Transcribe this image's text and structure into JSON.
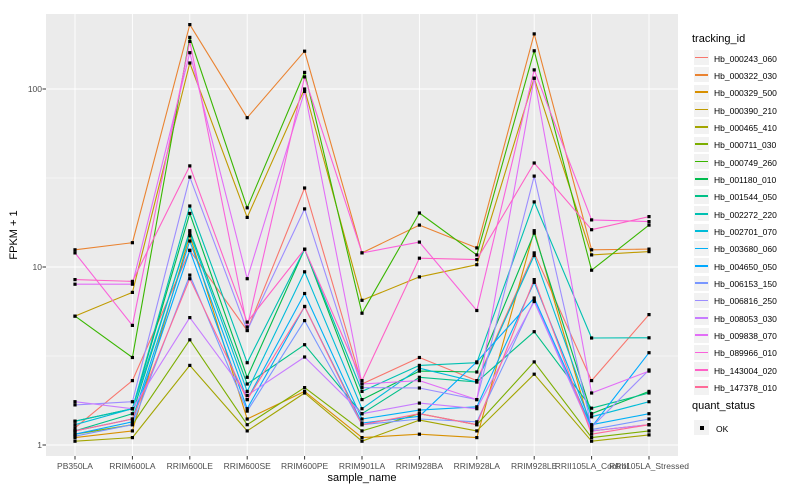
{
  "chart_data": {
    "type": "line",
    "title": "",
    "xlabel": "sample_name",
    "ylabel": "FPKM + 1",
    "yscale": "log10",
    "yticks": [
      1,
      10,
      100
    ],
    "ylim": [
      0.87,
      264
    ],
    "grid": "major+minor white on grey panel",
    "legend_position": "right",
    "panel_bg": "#EBEBEB",
    "grid_color": "#FFFFFF",
    "tick_color": "#333333",
    "point_shape": "square",
    "point_color": "#000000",
    "categories": [
      "PB350LA",
      "RRIM600LA",
      "RRIM600LE",
      "RRIM600SE",
      "RRIM600PE",
      "RRIM901LA",
      "RRIM928BA",
      "RRIM928LA",
      "RRIM928LE",
      "RRII105LA_Control",
      "RRII105LA_Stressed"
    ],
    "series": [
      {
        "name": "Hb_000243_060",
        "color": "#F8766D",
        "values": [
          1.25,
          2.3,
          12.4,
          4.4,
          27.8,
          2.2,
          3.1,
          2.3,
          12.0,
          2.3,
          5.4
        ]
      },
      {
        "name": "Hb_000322_030",
        "color": "#EA8331",
        "values": [
          12.5,
          13.7,
          230,
          69,
          163,
          12.0,
          17.2,
          12.8,
          204,
          12.5,
          12.6
        ]
      },
      {
        "name": "Hb_000329_500",
        "color": "#D89000",
        "values": [
          1.1,
          1.2,
          15.0,
          1.4,
          2.0,
          1.1,
          1.15,
          1.1,
          16.0,
          1.2,
          1.3
        ]
      },
      {
        "name": "Hb_000390_210",
        "color": "#C09B00",
        "values": [
          5.3,
          7.2,
          140,
          19.0,
          100,
          6.5,
          8.8,
          10.3,
          115,
          11.7,
          12.2
        ]
      },
      {
        "name": "Hb_000465_410",
        "color": "#A3A500",
        "values": [
          1.05,
          1.1,
          2.8,
          1.2,
          1.96,
          1.05,
          1.38,
          1.2,
          2.5,
          1.05,
          1.14
        ]
      },
      {
        "name": "Hb_000711_030",
        "color": "#7CAE00",
        "values": [
          1.15,
          1.3,
          3.9,
          1.3,
          2.1,
          1.2,
          1.5,
          1.3,
          2.93,
          1.1,
          1.2
        ]
      },
      {
        "name": "Hb_000749_260",
        "color": "#39B600",
        "values": [
          5.3,
          3.1,
          195,
          21.5,
          124,
          5.5,
          20.1,
          11.7,
          164,
          9.6,
          17.2
        ]
      },
      {
        "name": "Hb_001180_010",
        "color": "#00BB4E",
        "values": [
          1.36,
          1.6,
          20.0,
          2.4,
          12.6,
          1.8,
          2.6,
          2.57,
          15.5,
          1.5,
          2.0
        ]
      },
      {
        "name": "Hb_001544_050",
        "color": "#00C087",
        "values": [
          1.2,
          1.5,
          16.0,
          2.2,
          3.66,
          1.5,
          2.4,
          2.26,
          4.33,
          1.61,
          1.96
        ]
      },
      {
        "name": "Hb_002272_220",
        "color": "#00C0B2",
        "values": [
          1.36,
          1.6,
          22.0,
          2.9,
          12.6,
          2.0,
          2.8,
          2.9,
          23.2,
          3.99,
          4.0
        ]
      },
      {
        "name": "Hb_002701_070",
        "color": "#00BCD8",
        "values": [
          1.3,
          1.6,
          15.5,
          2.0,
          9.4,
          1.6,
          2.7,
          2.26,
          11.6,
          1.44,
          1.75
        ]
      },
      {
        "name": "Hb_003680_060",
        "color": "#00B0F6",
        "values": [
          1.2,
          1.4,
          14.0,
          1.8,
          7.1,
          1.4,
          1.57,
          1.64,
          8.2,
          1.3,
          1.5
        ]
      },
      {
        "name": "Hb_004650_050",
        "color": "#00A9FF",
        "values": [
          1.15,
          1.35,
          12.4,
          1.6,
          6.0,
          1.33,
          1.45,
          2.93,
          6.7,
          1.26,
          3.3
        ]
      },
      {
        "name": "Hb_006153_150",
        "color": "#7997FF",
        "values": [
          1.12,
          1.3,
          9.0,
          1.55,
          5.0,
          1.3,
          1.4,
          1.35,
          6.5,
          1.22,
          1.4
        ]
      },
      {
        "name": "Hb_006816_250",
        "color": "#9C8DFF",
        "values": [
          1.68,
          1.75,
          32.0,
          4.4,
          21.2,
          2.1,
          2.09,
          1.8,
          32.4,
          1.26,
          2.64
        ]
      },
      {
        "name": "Hb_008053_030",
        "color": "#C77CFF",
        "values": [
          1.75,
          1.6,
          5.2,
          1.9,
          3.12,
          1.5,
          1.72,
          1.6,
          6.4,
          1.2,
          1.3
        ]
      },
      {
        "name": "Hb_009838_070",
        "color": "#E26EF7",
        "values": [
          8.0,
          8.0,
          160,
          8.6,
          97,
          2.2,
          2.3,
          1.8,
          115,
          1.96,
          2.6
        ]
      },
      {
        "name": "Hb_089966_010",
        "color": "#FA62DB",
        "values": [
          12.0,
          4.7,
          185,
          4.6,
          117,
          12.0,
          13.8,
          5.7,
          128,
          18.4,
          18.0
        ]
      },
      {
        "name": "Hb_143004_020",
        "color": "#FF61C7",
        "values": [
          8.5,
          8.3,
          37.0,
          4.9,
          12.6,
          2.3,
          11.2,
          11.0,
          38.4,
          16.2,
          19.2
        ]
      },
      {
        "name": "Hb_147378_010",
        "color": "#FF6A98",
        "values": [
          1.2,
          1.4,
          8.6,
          1.8,
          6.0,
          1.3,
          1.5,
          1.3,
          8.5,
          1.15,
          1.3
        ]
      }
    ]
  },
  "legend": {
    "tracking_title": "tracking_id",
    "quant_title": "quant_status",
    "quant_ok_label": "OK"
  }
}
